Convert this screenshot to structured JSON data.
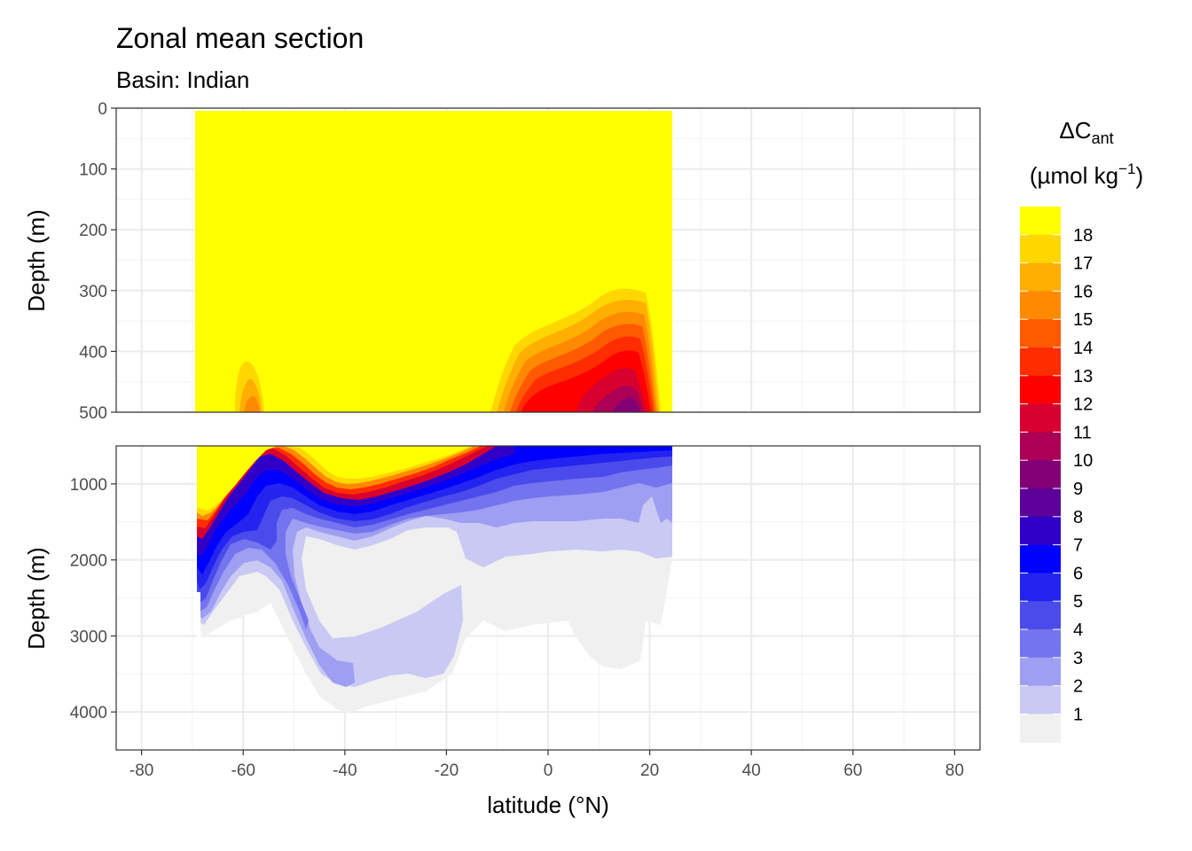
{
  "chart_data": {
    "type": "heatmap",
    "title": "Zonal mean section",
    "subtitle": "Basin: Indian",
    "xlabel": "latitude (°N)",
    "ylabel": "Depth (m)",
    "xlim": [
      -85,
      85
    ],
    "x_ticks": [
      -80,
      -60,
      -40,
      -20,
      0,
      20,
      40,
      60,
      80
    ],
    "x_tick_labels": [
      "-80",
      "-60",
      "-40",
      "-20",
      "0",
      "20",
      "40",
      "60",
      "80"
    ],
    "data_extent_lat": [
      -69.5,
      24.5
    ],
    "panels": [
      {
        "name": "upper",
        "ylim": [
          0,
          500
        ],
        "y_ticks": [
          0,
          100,
          200,
          300,
          400,
          500
        ],
        "y_tick_labels": [
          "0",
          "100",
          "200",
          "300",
          "400",
          "500"
        ]
      },
      {
        "name": "deep",
        "ylim": [
          500,
          4500
        ],
        "y_ticks": [
          1000,
          2000,
          3000,
          4000
        ],
        "y_tick_labels": [
          "1000",
          "2000",
          "3000",
          "4000"
        ]
      }
    ],
    "legend": {
      "title_main": "ΔC",
      "title_sub": "ant",
      "unit_prefix": "(µmol kg",
      "unit_sup": "−1",
      "unit_suffix": ")",
      "position": "right",
      "breaks": [
        "18",
        "17",
        "16",
        "15",
        "14",
        "13",
        "12",
        "11",
        "10",
        "9",
        "8",
        "7",
        "6",
        "5",
        "4",
        "3",
        "2",
        "1"
      ],
      "colors": [
        "#ffff00",
        "#ffd700",
        "#ffaf00",
        "#ff8a00",
        "#ff5a00",
        "#ff2d00",
        "#ff0000",
        "#d7002f",
        "#ab0055",
        "#820077",
        "#5c0099",
        "#3100c8",
        "#0000ff",
        "#2424f0",
        "#4b4bec",
        "#7474ef",
        "#9e9ef2",
        "#c9c9f4",
        "#f0f0f0"
      ]
    },
    "grid": true
  }
}
